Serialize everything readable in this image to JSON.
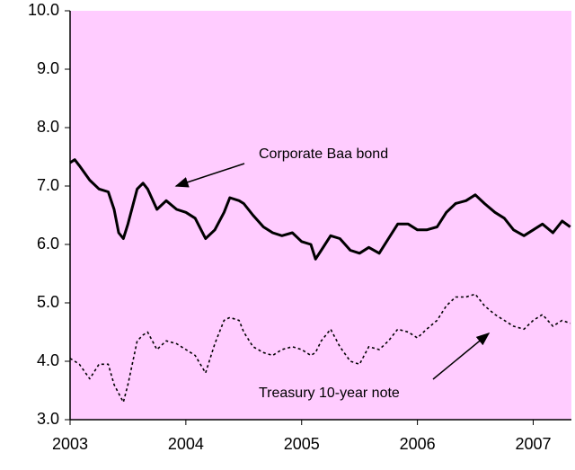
{
  "chart_data": {
    "type": "line",
    "x": [
      2003.0,
      2003.04,
      2003.08,
      2003.17,
      2003.25,
      2003.33,
      2003.38,
      2003.42,
      2003.46,
      2003.5,
      2003.58,
      2003.63,
      2003.67,
      2003.75,
      2003.83,
      2003.92,
      2004.0,
      2004.08,
      2004.17,
      2004.25,
      2004.33,
      2004.38,
      2004.46,
      2004.5,
      2004.58,
      2004.67,
      2004.75,
      2004.83,
      2004.92,
      2005.0,
      2005.08,
      2005.12,
      2005.17,
      2005.25,
      2005.33,
      2005.42,
      2005.5,
      2005.58,
      2005.67,
      2005.75,
      2005.83,
      2005.92,
      2006.0,
      2006.08,
      2006.17,
      2006.25,
      2006.33,
      2006.42,
      2006.5,
      2006.58,
      2006.67,
      2006.75,
      2006.83,
      2006.92,
      2007.0,
      2007.08,
      2007.17,
      2007.25,
      2007.32
    ],
    "series": [
      {
        "name": "Corporate Baa bond",
        "color": "#000000",
        "dashed": false,
        "values": [
          7.4,
          7.45,
          7.35,
          7.1,
          6.95,
          6.9,
          6.6,
          6.2,
          6.1,
          6.35,
          6.95,
          7.05,
          6.95,
          6.6,
          6.75,
          6.6,
          6.55,
          6.45,
          6.1,
          6.25,
          6.55,
          6.8,
          6.75,
          6.7,
          6.5,
          6.3,
          6.2,
          6.15,
          6.2,
          6.05,
          6.0,
          5.75,
          5.9,
          6.15,
          6.1,
          5.9,
          5.85,
          5.95,
          5.85,
          6.1,
          6.35,
          6.35,
          6.25,
          6.25,
          6.3,
          6.55,
          6.7,
          6.75,
          6.85,
          6.7,
          6.55,
          6.45,
          6.25,
          6.15,
          6.25,
          6.35,
          6.2,
          6.4,
          6.3
        ]
      },
      {
        "name": "Treasury 10-year note",
        "color": "#000000",
        "dashed": true,
        "values": [
          4.05,
          4.0,
          3.95,
          3.7,
          3.95,
          3.95,
          3.6,
          3.45,
          3.3,
          3.6,
          4.35,
          4.45,
          4.5,
          4.2,
          4.35,
          4.3,
          4.2,
          4.1,
          3.8,
          4.3,
          4.7,
          4.75,
          4.7,
          4.5,
          4.25,
          4.15,
          4.1,
          4.2,
          4.25,
          4.2,
          4.1,
          4.15,
          4.35,
          4.55,
          4.25,
          4.0,
          3.95,
          4.25,
          4.2,
          4.35,
          4.55,
          4.5,
          4.4,
          4.55,
          4.7,
          4.95,
          5.1,
          5.1,
          5.15,
          4.95,
          4.8,
          4.7,
          4.6,
          4.55,
          4.7,
          4.8,
          4.6,
          4.7,
          4.65
        ]
      }
    ],
    "xlim": [
      2003,
      2007.33
    ],
    "xticks": [
      2003,
      2004,
      2005,
      2006,
      2007
    ],
    "ylim": [
      3,
      10
    ],
    "yticks": [
      {
        "value": 3,
        "label": "3.0"
      },
      {
        "value": 4,
        "label": "4.0"
      },
      {
        "value": 5,
        "label": "5.0"
      },
      {
        "value": 6,
        "label": "6.0"
      },
      {
        "value": 7,
        "label": "7.0"
      },
      {
        "value": 8,
        "label": "8.0"
      },
      {
        "value": 9,
        "label": "9.0"
      },
      {
        "value": 10,
        "label": "10.0"
      }
    ],
    "plot_background": "#ffccff",
    "grid": false,
    "annotations": [
      "Corporate Baa bond",
      "Treasury 10-year note"
    ]
  }
}
